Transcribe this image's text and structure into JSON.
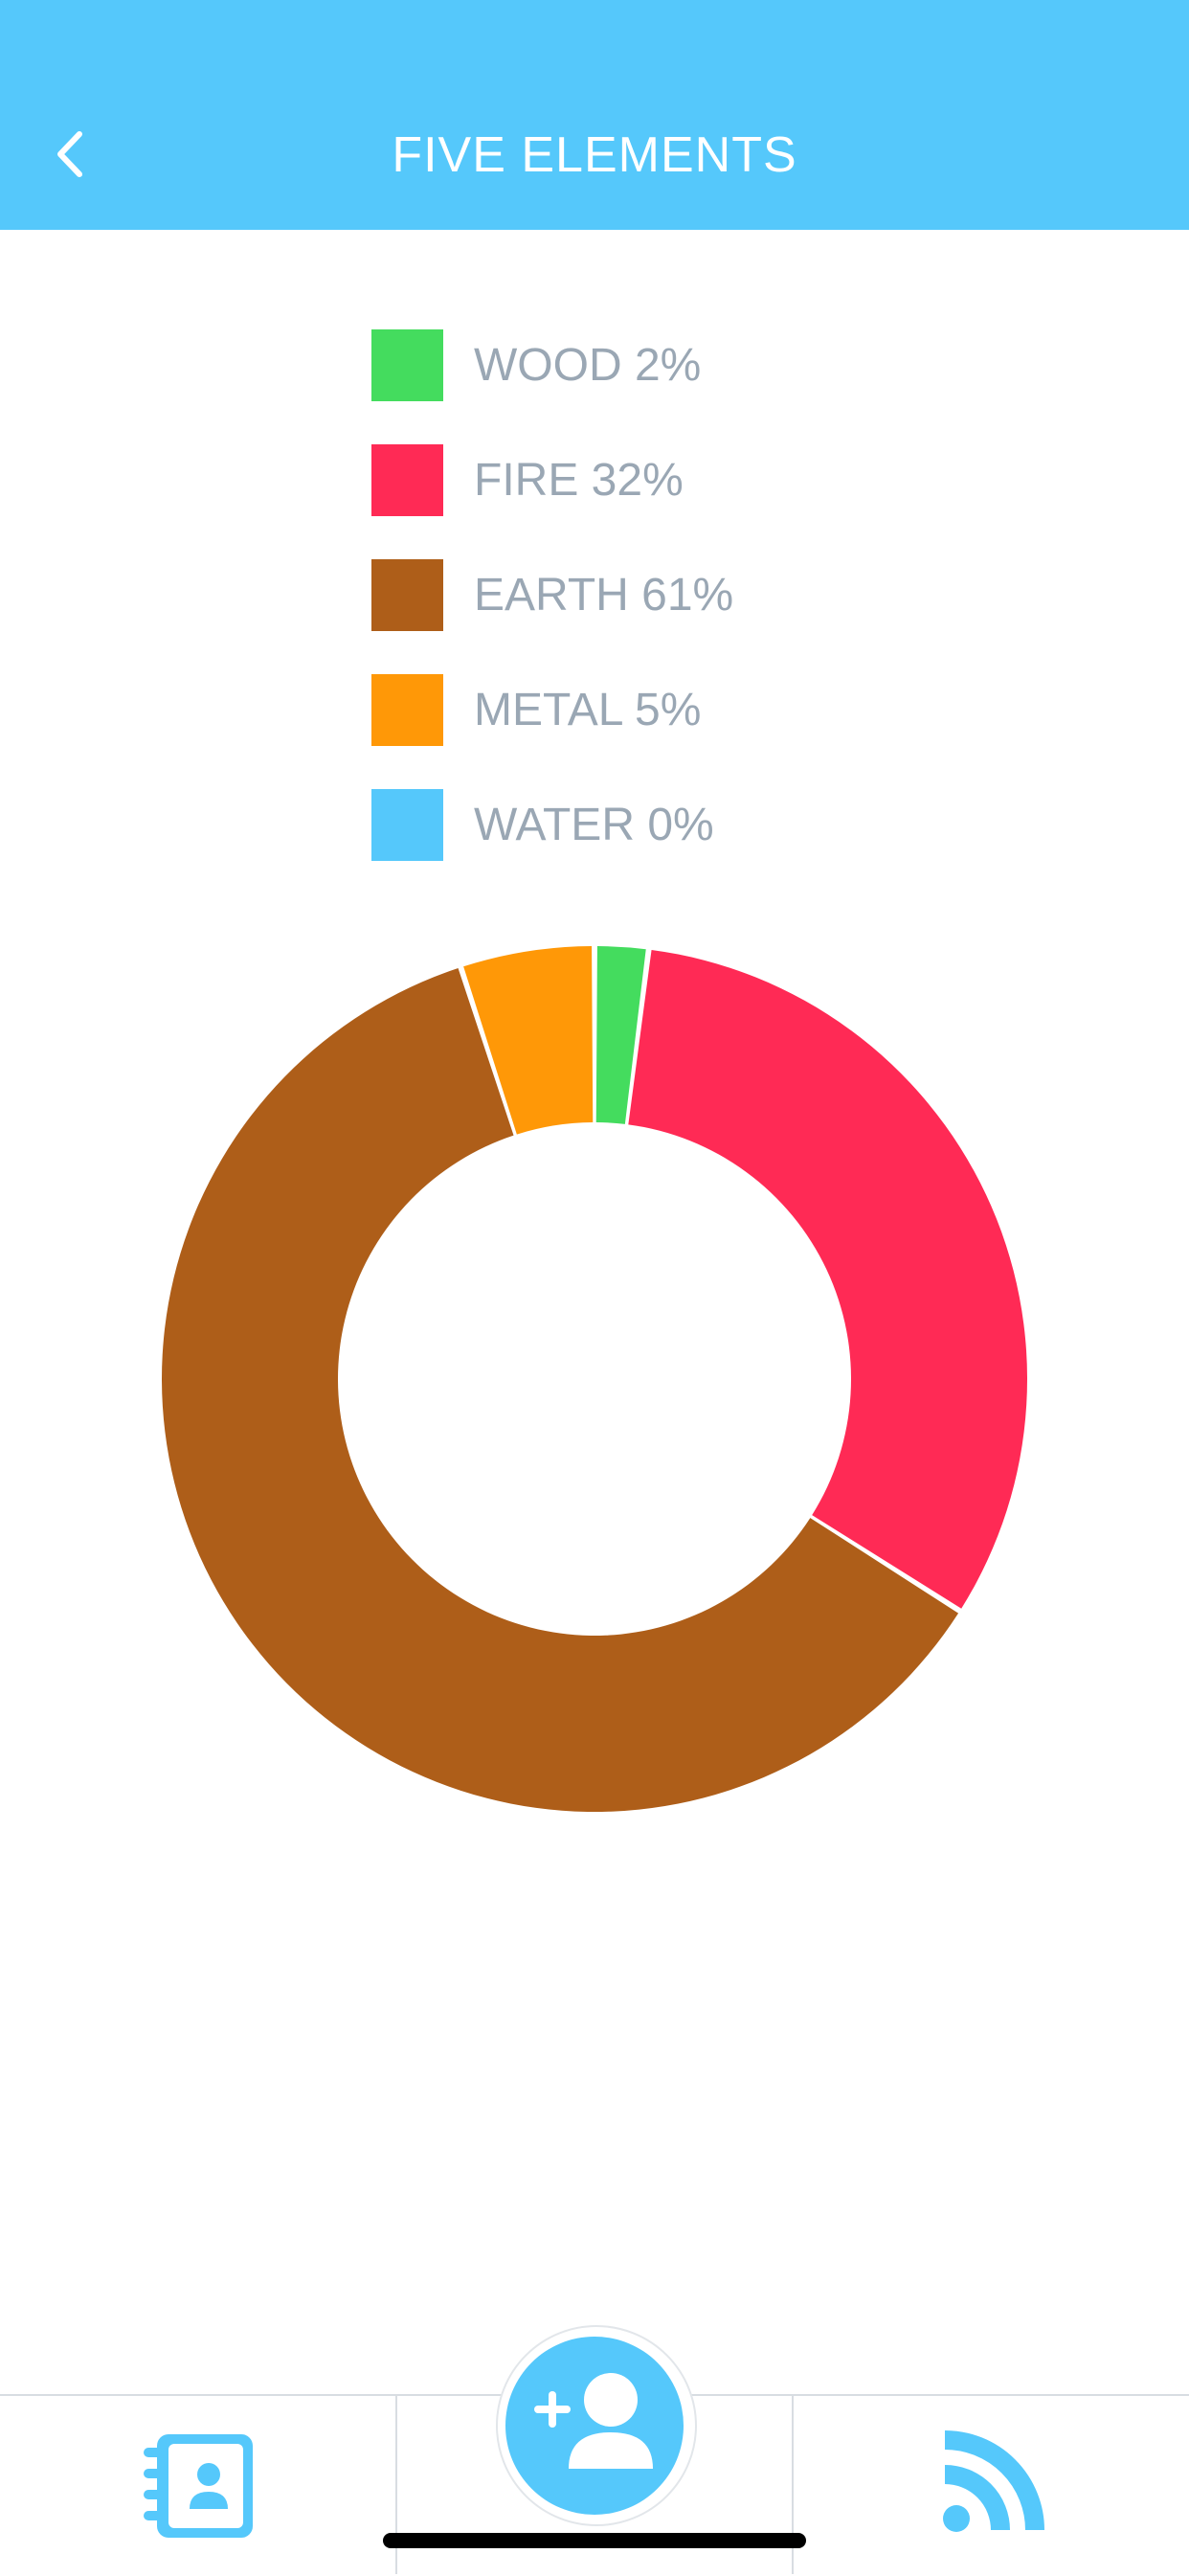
{
  "header": {
    "title": "FIVE ELEMENTS",
    "background": "#55c8fb",
    "back_icon": "chevron-left-icon"
  },
  "chart_data": {
    "type": "pie",
    "donut": true,
    "start_angle": "top",
    "direction": "clockwise",
    "legend_position": "top",
    "categories": [
      "WOOD",
      "FIRE",
      "EARTH",
      "METAL",
      "WATER"
    ],
    "values": [
      2,
      32,
      61,
      5,
      0
    ],
    "units": "%",
    "colors": [
      "#44dc5e",
      "#ff2a55",
      "#ae5e19",
      "#ff9807",
      "#55c8fb"
    ],
    "legend_labels": [
      "WOOD 2%",
      "FIRE 32%",
      "EARTH 61%",
      "METAL 5%",
      "WATER 0%"
    ]
  },
  "tabbar": {
    "items": [
      {
        "icon": "contacts-book-icon"
      },
      {
        "icon": "add-user-icon"
      },
      {
        "icon": "rss-feed-icon"
      }
    ],
    "accent": "#55c8fb"
  }
}
